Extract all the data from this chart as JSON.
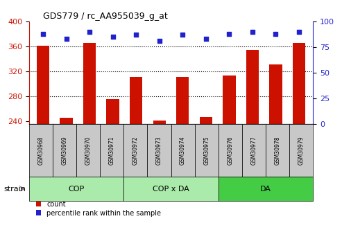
{
  "title": "GDS779 / rc_AA955039_g_at",
  "samples": [
    "GSM30968",
    "GSM30969",
    "GSM30970",
    "GSM30971",
    "GSM30972",
    "GSM30973",
    "GSM30974",
    "GSM30975",
    "GSM30976",
    "GSM30977",
    "GSM30978",
    "GSM30979"
  ],
  "counts": [
    361,
    246,
    366,
    275,
    311,
    241,
    311,
    247,
    313,
    354,
    331,
    366
  ],
  "percentiles": [
    88,
    83,
    90,
    85,
    87,
    81,
    87,
    83,
    88,
    90,
    88,
    90
  ],
  "groups": [
    {
      "label": "COP",
      "start": 0,
      "end": 3,
      "color": "#aaeaaa"
    },
    {
      "label": "COP x DA",
      "start": 4,
      "end": 7,
      "color": "#aaeaaa"
    },
    {
      "label": "DA",
      "start": 8,
      "end": 11,
      "color": "#44cc44"
    }
  ],
  "ylim_left": [
    235,
    400
  ],
  "ylim_right": [
    0,
    100
  ],
  "yticks_left": [
    240,
    280,
    320,
    360,
    400
  ],
  "yticks_right": [
    0,
    25,
    50,
    75,
    100
  ],
  "grid_lines": [
    280,
    320,
    360
  ],
  "bar_color": "#cc1100",
  "dot_color": "#2222cc",
  "sample_box_color": "#c8c8c8",
  "label_count": "count",
  "label_pct": "percentile rank within the sample",
  "strain_label": "strain"
}
